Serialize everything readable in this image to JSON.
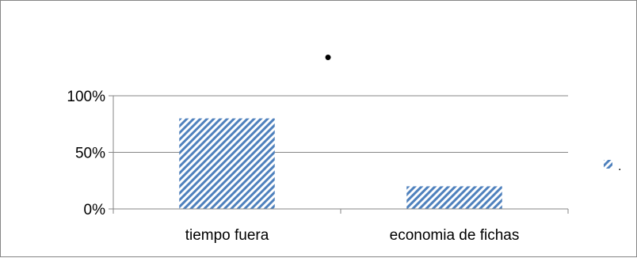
{
  "chart_data": {
    "type": "bar",
    "title": "•",
    "categories": [
      "tiempo fuera",
      "economia de fichas"
    ],
    "series": [
      {
        "name": ".",
        "values": [
          80,
          20
        ]
      }
    ],
    "ylim": [
      0,
      100
    ],
    "yticks": [
      0,
      50,
      100
    ],
    "ytick_format": "{v}%",
    "grid": true,
    "legend": "right",
    "colors": {
      "bar": "#4f81bd",
      "grid": "#868686",
      "axis": "#868686"
    },
    "pattern": "diagonal-stripes"
  }
}
